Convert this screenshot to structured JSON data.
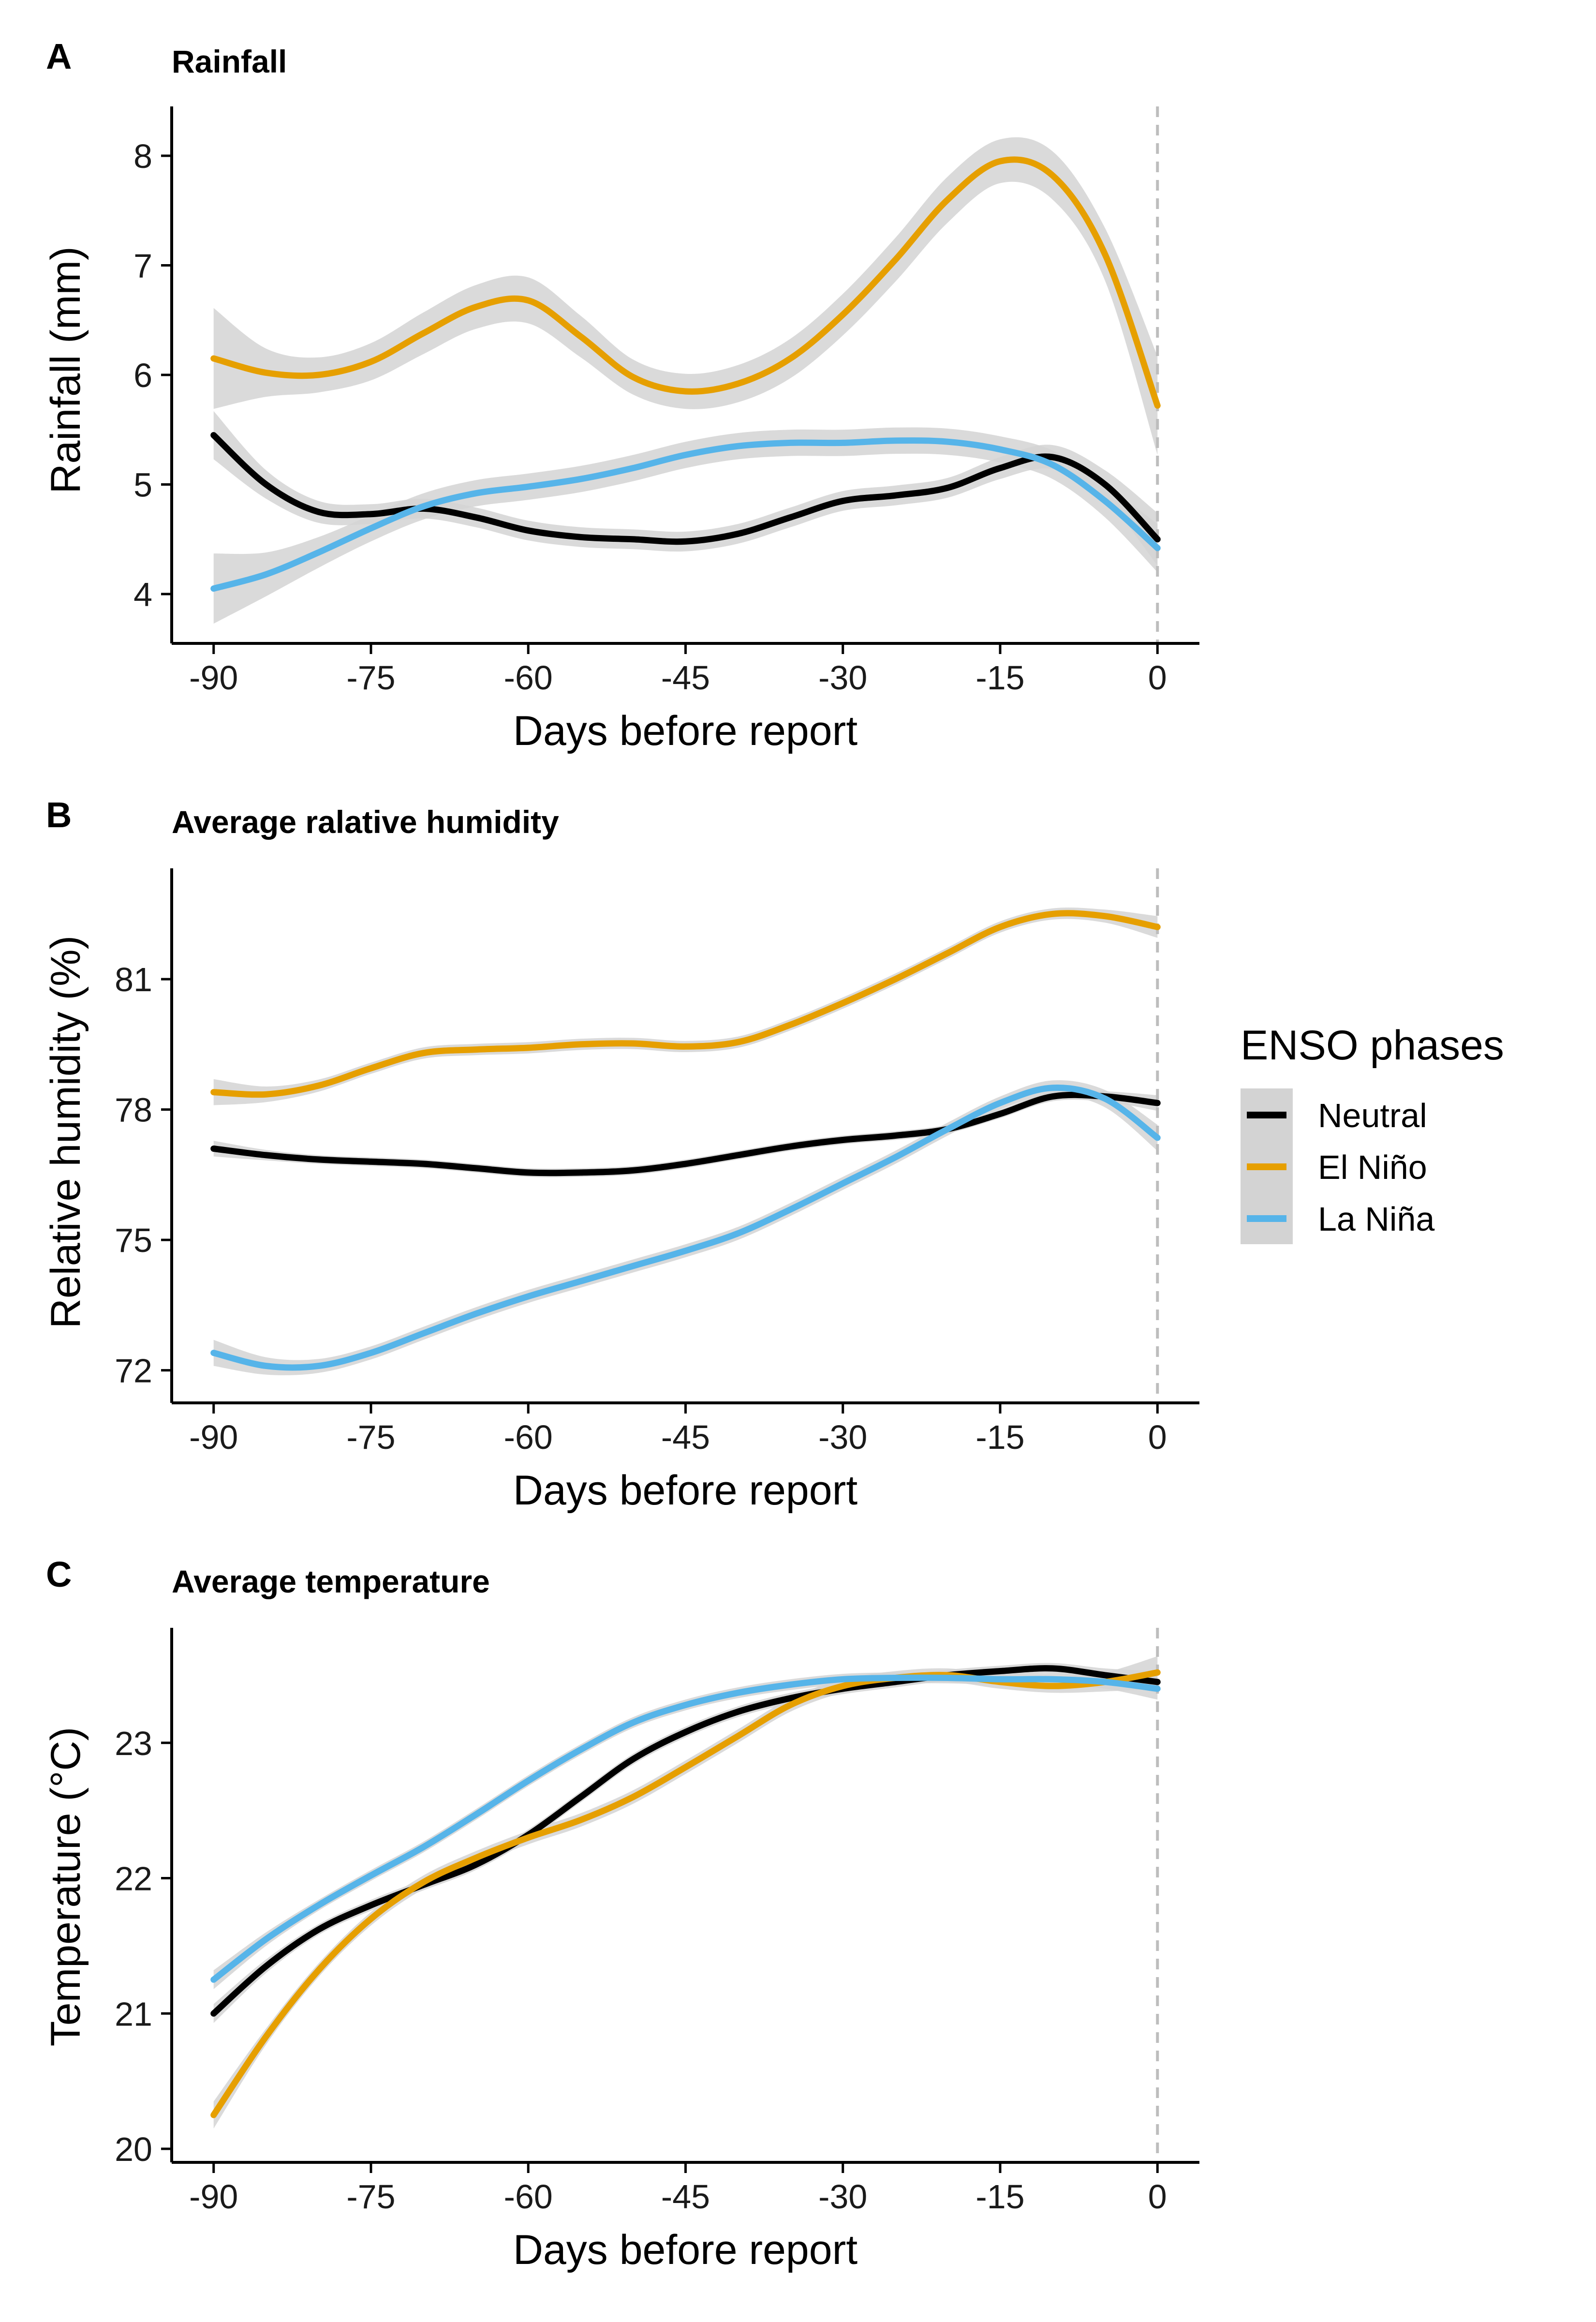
{
  "legend": {
    "title": "ENSO phases",
    "placement": "right",
    "entries": [
      {
        "label": "Neutral",
        "color": "#000000"
      },
      {
        "label": "El Niño",
        "color": "#E69F00"
      },
      {
        "label": "La Niña",
        "color": "#56B4E9"
      }
    ]
  },
  "colors": {
    "band": "#d3d3d3",
    "reference_line": "#bdbdbd",
    "axis": "#000000"
  },
  "chart_data": [
    {
      "panel_label": "A",
      "title": "Rainfall",
      "type": "line",
      "xlabel": "Days before report",
      "ylabel": "Rainfall (mm)",
      "xlim": [
        -94,
        4
      ],
      "ylim": [
        3.55,
        8.45
      ],
      "xticks": [
        -90,
        -75,
        -60,
        -45,
        -30,
        -15,
        0
      ],
      "yticks": [
        4,
        5,
        6,
        7,
        8
      ],
      "reference_x": 0,
      "confidence_band": true,
      "series": [
        {
          "name": "Neutral",
          "x": [
            -90,
            -85,
            -80,
            -75,
            -70,
            -65,
            -60,
            -55,
            -50,
            -45,
            -40,
            -35,
            -30,
            -25,
            -20,
            -15,
            -10,
            -5,
            0
          ],
          "y": [
            5.45,
            5.0,
            4.75,
            4.73,
            4.78,
            4.7,
            4.58,
            4.52,
            4.5,
            4.48,
            4.55,
            4.7,
            4.85,
            4.9,
            4.97,
            5.15,
            5.25,
            5.0,
            4.5
          ],
          "band": [
            0.22,
            0.13,
            0.1,
            0.09,
            0.09,
            0.09,
            0.09,
            0.09,
            0.09,
            0.09,
            0.09,
            0.09,
            0.09,
            0.09,
            0.09,
            0.1,
            0.11,
            0.13,
            0.24
          ]
        },
        {
          "name": "El Niño",
          "x": [
            -90,
            -85,
            -80,
            -75,
            -70,
            -65,
            -60,
            -55,
            -50,
            -45,
            -40,
            -35,
            -30,
            -25,
            -20,
            -15,
            -10,
            -5,
            0
          ],
          "y": [
            6.15,
            6.02,
            6.0,
            6.12,
            6.38,
            6.62,
            6.68,
            6.35,
            5.98,
            5.85,
            5.92,
            6.15,
            6.55,
            7.05,
            7.6,
            7.95,
            7.82,
            7.1,
            5.72
          ],
          "band": [
            0.46,
            0.22,
            0.16,
            0.17,
            0.19,
            0.2,
            0.21,
            0.19,
            0.16,
            0.16,
            0.17,
            0.18,
            0.19,
            0.2,
            0.21,
            0.2,
            0.22,
            0.24,
            0.45
          ]
        },
        {
          "name": "La Niña",
          "x": [
            -90,
            -85,
            -80,
            -75,
            -70,
            -65,
            -60,
            -55,
            -50,
            -45,
            -40,
            -35,
            -30,
            -25,
            -20,
            -15,
            -10,
            -5,
            0
          ],
          "y": [
            4.05,
            4.18,
            4.38,
            4.6,
            4.8,
            4.92,
            4.98,
            5.05,
            5.15,
            5.27,
            5.35,
            5.38,
            5.38,
            5.4,
            5.39,
            5.32,
            5.18,
            4.85,
            4.42
          ],
          "band": [
            0.32,
            0.2,
            0.14,
            0.12,
            0.12,
            0.12,
            0.12,
            0.12,
            0.12,
            0.12,
            0.12,
            0.12,
            0.12,
            0.12,
            0.12,
            0.12,
            0.13,
            0.15,
            0.22
          ]
        }
      ]
    },
    {
      "panel_label": "B",
      "title": "Average ralative humidity",
      "type": "line",
      "xlabel": "Days before report",
      "ylabel": "Relative humidity (%)",
      "xlim": [
        -94,
        4
      ],
      "ylim": [
        71.25,
        83.55
      ],
      "xticks": [
        -90,
        -75,
        -60,
        -45,
        -30,
        -15,
        0
      ],
      "yticks": [
        72,
        75,
        78,
        81
      ],
      "reference_x": 0,
      "confidence_band": true,
      "series": [
        {
          "name": "Neutral",
          "x": [
            -90,
            -85,
            -80,
            -75,
            -70,
            -65,
            -60,
            -55,
            -50,
            -45,
            -40,
            -35,
            -30,
            -25,
            -20,
            -15,
            -10,
            -5,
            0
          ],
          "y": [
            77.1,
            76.95,
            76.85,
            76.8,
            76.75,
            76.65,
            76.55,
            76.55,
            76.6,
            76.75,
            76.95,
            77.15,
            77.3,
            77.4,
            77.55,
            77.9,
            78.3,
            78.3,
            78.15
          ],
          "band": [
            0.18,
            0.12,
            0.1,
            0.1,
            0.1,
            0.1,
            0.1,
            0.1,
            0.1,
            0.1,
            0.1,
            0.1,
            0.1,
            0.1,
            0.1,
            0.1,
            0.11,
            0.12,
            0.18
          ]
        },
        {
          "name": "El Niño",
          "x": [
            -90,
            -85,
            -80,
            -75,
            -70,
            -65,
            -60,
            -55,
            -50,
            -45,
            -40,
            -35,
            -30,
            -25,
            -20,
            -15,
            -10,
            -5,
            0
          ],
          "y": [
            78.4,
            78.35,
            78.55,
            78.95,
            79.3,
            79.38,
            79.42,
            79.5,
            79.52,
            79.45,
            79.55,
            79.95,
            80.45,
            81.0,
            81.6,
            82.2,
            82.5,
            82.45,
            82.2
          ],
          "band": [
            0.3,
            0.18,
            0.14,
            0.13,
            0.13,
            0.13,
            0.13,
            0.13,
            0.13,
            0.13,
            0.13,
            0.13,
            0.13,
            0.13,
            0.13,
            0.13,
            0.13,
            0.15,
            0.25
          ]
        },
        {
          "name": "La Niña",
          "x": [
            -90,
            -85,
            -80,
            -75,
            -70,
            -65,
            -60,
            -55,
            -50,
            -45,
            -40,
            -35,
            -30,
            -25,
            -20,
            -15,
            -10,
            -5,
            0
          ],
          "y": [
            72.4,
            72.1,
            72.1,
            72.4,
            72.85,
            73.3,
            73.7,
            74.05,
            74.4,
            74.75,
            75.15,
            75.7,
            76.3,
            76.9,
            77.55,
            78.15,
            78.5,
            78.25,
            77.35
          ],
          "band": [
            0.3,
            0.2,
            0.16,
            0.15,
            0.15,
            0.15,
            0.15,
            0.15,
            0.15,
            0.15,
            0.15,
            0.15,
            0.15,
            0.15,
            0.15,
            0.15,
            0.17,
            0.2,
            0.3
          ]
        }
      ]
    },
    {
      "panel_label": "C",
      "title": "Average temperature",
      "type": "line",
      "xlabel": "Days before report",
      "ylabel": "Temperature (°C)",
      "xlim": [
        -94,
        4
      ],
      "ylim": [
        19.9,
        23.85
      ],
      "xticks": [
        -90,
        -75,
        -60,
        -45,
        -30,
        -15,
        0
      ],
      "yticks": [
        20,
        21,
        22,
        23
      ],
      "reference_x": 0,
      "confidence_band": true,
      "series": [
        {
          "name": "Neutral",
          "x": [
            -90,
            -85,
            -80,
            -75,
            -70,
            -65,
            -60,
            -55,
            -50,
            -45,
            -40,
            -35,
            -30,
            -25,
            -20,
            -15,
            -10,
            -5,
            0
          ],
          "y": [
            21.0,
            21.35,
            21.62,
            21.8,
            21.95,
            22.1,
            22.32,
            22.6,
            22.88,
            23.08,
            23.23,
            23.33,
            23.4,
            23.45,
            23.5,
            23.53,
            23.55,
            23.5,
            23.45
          ],
          "band": [
            0.07,
            0.05,
            0.04,
            0.04,
            0.04,
            0.04,
            0.04,
            0.04,
            0.04,
            0.04,
            0.04,
            0.04,
            0.04,
            0.04,
            0.04,
            0.04,
            0.04,
            0.05,
            0.08
          ]
        },
        {
          "name": "El Niño",
          "x": [
            -90,
            -85,
            -80,
            -75,
            -70,
            -65,
            -60,
            -55,
            -50,
            -45,
            -40,
            -35,
            -30,
            -25,
            -20,
            -15,
            -10,
            -5,
            0
          ],
          "y": [
            20.25,
            20.83,
            21.32,
            21.7,
            21.97,
            22.15,
            22.3,
            22.43,
            22.6,
            22.82,
            23.05,
            23.28,
            23.42,
            23.48,
            23.5,
            23.45,
            23.42,
            23.45,
            23.52
          ],
          "band": [
            0.1,
            0.06,
            0.05,
            0.05,
            0.05,
            0.05,
            0.05,
            0.05,
            0.05,
            0.05,
            0.05,
            0.05,
            0.05,
            0.05,
            0.05,
            0.05,
            0.05,
            0.07,
            0.12
          ]
        },
        {
          "name": "La Niña",
          "x": [
            -90,
            -85,
            -80,
            -75,
            -70,
            -65,
            -60,
            -55,
            -50,
            -45,
            -40,
            -35,
            -30,
            -25,
            -20,
            -15,
            -10,
            -5,
            0
          ],
          "y": [
            21.25,
            21.55,
            21.8,
            22.02,
            22.23,
            22.47,
            22.72,
            22.95,
            23.15,
            23.28,
            23.37,
            23.43,
            23.47,
            23.48,
            23.48,
            23.47,
            23.47,
            23.45,
            23.4
          ],
          "band": [
            0.07,
            0.05,
            0.04,
            0.04,
            0.04,
            0.04,
            0.04,
            0.04,
            0.04,
            0.04,
            0.04,
            0.04,
            0.04,
            0.04,
            0.04,
            0.04,
            0.04,
            0.05,
            0.08
          ]
        }
      ]
    }
  ]
}
